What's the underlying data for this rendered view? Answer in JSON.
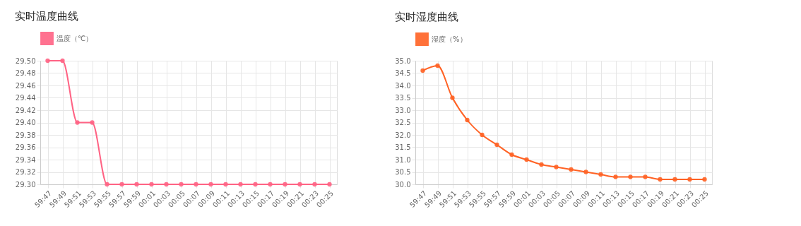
{
  "chart_data": [
    {
      "type": "line",
      "title": "实时温度曲线",
      "categories": [
        "59:47",
        "59:49",
        "59:51",
        "59:53",
        "59:55",
        "59:57",
        "59:59",
        "00:01",
        "00:03",
        "00:05",
        "00:07",
        "00:09",
        "00:11",
        "00:13",
        "00:15",
        "00:17",
        "00:19",
        "00:21",
        "00:23",
        "00:25"
      ],
      "series": [
        {
          "name": "温度（℃）",
          "color": "#ff6384",
          "values": [
            29.5,
            29.5,
            29.4,
            29.4,
            29.3,
            29.3,
            29.3,
            29.3,
            29.3,
            29.3,
            29.3,
            29.3,
            29.3,
            29.3,
            29.3,
            29.3,
            29.3,
            29.3,
            29.3,
            29.3
          ]
        }
      ],
      "ylim": [
        29.3,
        29.5
      ],
      "yticks": [
        {
          "value": 29.3,
          "label": "29.30"
        },
        {
          "value": 29.32,
          "label": "29.32"
        },
        {
          "value": 29.34,
          "label": "29.34"
        },
        {
          "value": 29.36,
          "label": "29.36"
        },
        {
          "value": 29.38,
          "label": "29.38"
        },
        {
          "value": 29.4,
          "label": "29.40"
        },
        {
          "value": 29.42,
          "label": "29.42"
        },
        {
          "value": 29.44,
          "label": "29.44"
        },
        {
          "value": 29.46,
          "label": "29.46"
        },
        {
          "value": 29.48,
          "label": "29.48"
        },
        {
          "value": 29.5,
          "label": "29.50"
        }
      ],
      "grid": true,
      "legend": "top",
      "marker": "circle",
      "line_style": "solid"
    },
    {
      "type": "line",
      "title": "实时湿度曲线",
      "categories": [
        "59:47",
        "59:49",
        "59:51",
        "59:53",
        "59:55",
        "59:57",
        "59:59",
        "00:01",
        "00:03",
        "00:05",
        "00:07",
        "00:09",
        "00:11",
        "00:13",
        "00:15",
        "00:17",
        "00:19",
        "00:21",
        "00:23",
        "00:25"
      ],
      "series": [
        {
          "name": "湿度（%）",
          "color": "#ff6224",
          "values": [
            34.6,
            34.8,
            33.5,
            32.6,
            32.0,
            31.6,
            31.2,
            31.0,
            30.8,
            30.7,
            30.6,
            30.5,
            30.4,
            30.3,
            30.3,
            30.3,
            30.2,
            30.2,
            30.2,
            30.2
          ]
        }
      ],
      "ylim": [
        30.0,
        35.0
      ],
      "yticks": [
        {
          "value": 30,
          "label": "30.0"
        },
        {
          "value": 30.5,
          "label": "30.5"
        },
        {
          "value": 31,
          "label": "31.0"
        },
        {
          "value": 31.5,
          "label": "31.5"
        },
        {
          "value": 32,
          "label": "32.0"
        },
        {
          "value": 32.5,
          "label": "32.5"
        },
        {
          "value": 33,
          "label": "33.0"
        },
        {
          "value": 33.5,
          "label": "33.5"
        },
        {
          "value": 34,
          "label": "34.0"
        },
        {
          "value": 34.5,
          "label": "34.5"
        },
        {
          "value": 35,
          "label": "35.0"
        }
      ],
      "grid": true,
      "legend": "top",
      "marker": "circle",
      "line_style": "solid"
    }
  ]
}
